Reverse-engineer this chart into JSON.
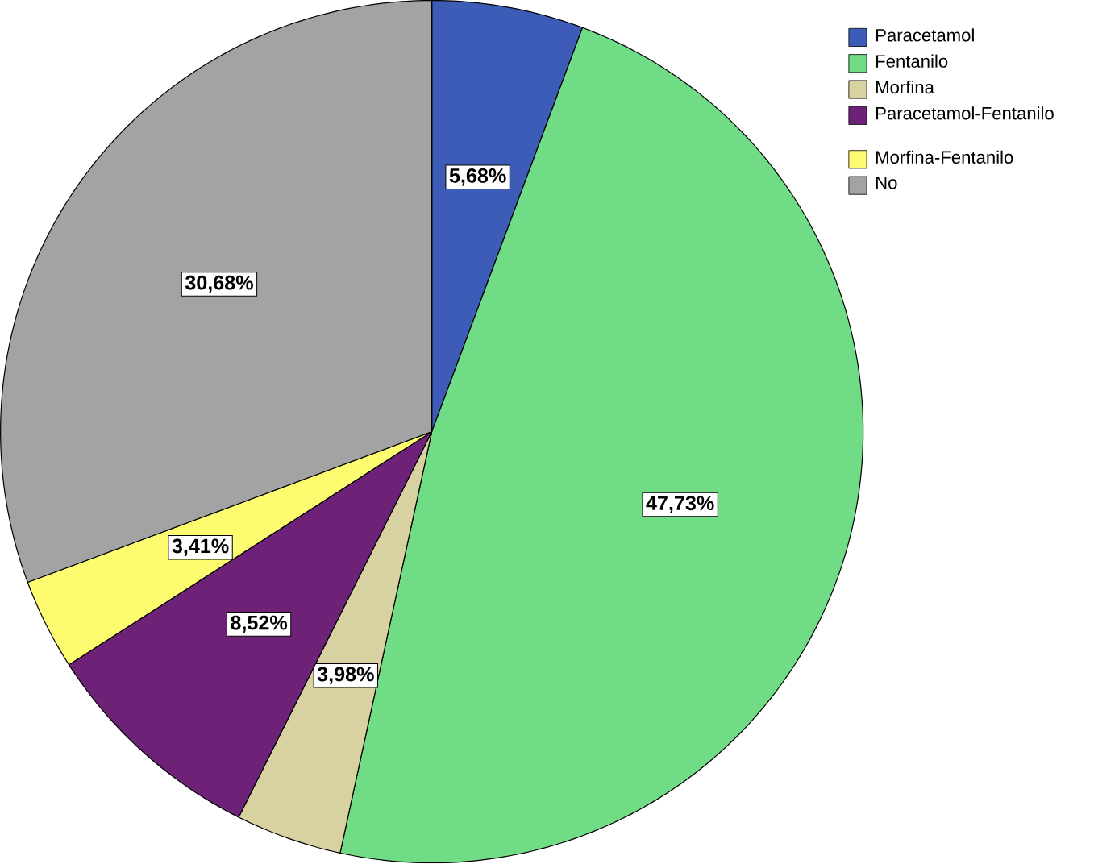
{
  "chart_data": {
    "type": "pie",
    "categories": [
      "Paracetamol",
      "Fentanilo",
      "Morfina",
      "Paracetamol-Fentanilo",
      "Morfina-Fentanilo",
      "No"
    ],
    "values": [
      5.68,
      47.73,
      3.98,
      8.52,
      3.41,
      30.68
    ],
    "colors": [
      "#3d5cb8",
      "#70dc86",
      "#d8d2a2",
      "#6e2277",
      "#fdfb70",
      "#a3a3a3"
    ],
    "value_labels": [
      "5,68%",
      "47,73%",
      "3,98%",
      "8,52%",
      "3,41%",
      "30,68%"
    ],
    "legend": "top right"
  }
}
